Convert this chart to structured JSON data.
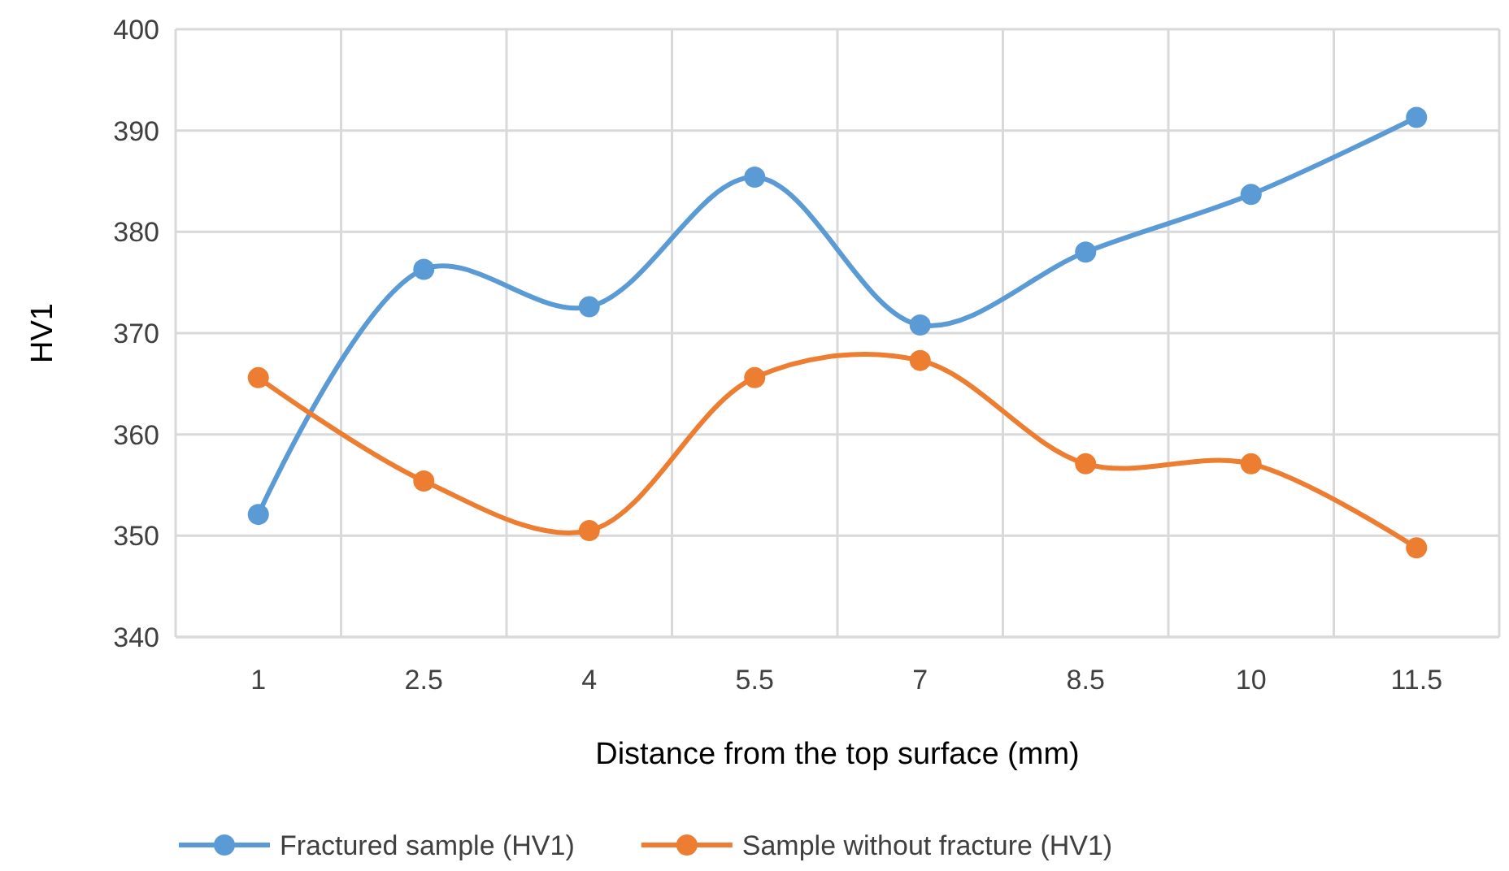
{
  "chart_data": {
    "type": "line",
    "xlabel": "Distance from the top surface (mm)",
    "ylabel": "HV1",
    "categories": [
      "1",
      "2.5",
      "4",
      "5.5",
      "7",
      "8.5",
      "10",
      "11.5"
    ],
    "series": [
      {
        "name": "Fractured sample (HV1)",
        "color": "#5b9bd5",
        "values": [
          352.1,
          376.3,
          372.6,
          385.4,
          370.8,
          378,
          383.7,
          391.3
        ]
      },
      {
        "name": "Sample without fracture (HV1)",
        "color": "#ed7d31",
        "values": [
          365.6,
          355.4,
          350.5,
          365.6,
          367.3,
          357.1,
          357.1,
          348.8
        ]
      }
    ],
    "ylim": [
      340,
      400
    ],
    "yticks": [
      340,
      350,
      360,
      370,
      380,
      390,
      400
    ],
    "grid": true,
    "legend": "bottom",
    "marker": "circle",
    "line_style": "solid"
  }
}
